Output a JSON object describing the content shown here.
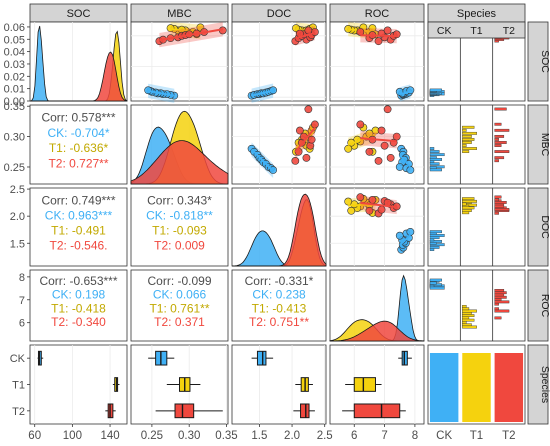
{
  "colors": {
    "CK": "#3fb0f5",
    "T1": "#f5d20e",
    "T2": "#f0483e",
    "strip": "#d4d4d4",
    "grid": "#ebebeb",
    "text_dark": "#4d4d4d"
  },
  "chart_data": {
    "type": "scatter",
    "variables": [
      "SOC",
      "MBC",
      "DOC",
      "ROC"
    ],
    "groups": [
      "CK",
      "T1",
      "T2"
    ],
    "facet_labels": [
      "SOC",
      "MBC",
      "DOC",
      "ROC",
      "Species"
    ],
    "axes": {
      "SOC": {
        "range": [
          55,
          158
        ],
        "ticks": [
          60,
          100,
          140
        ],
        "density_ticks": [
          0.0,
          0.01,
          0.02,
          0.03,
          0.04,
          0.05,
          0.06
        ]
      },
      "MBC": {
        "range": [
          0.222,
          0.352
        ],
        "ticks": [
          0.25,
          0.3,
          0.35
        ]
      },
      "DOC": {
        "range": [
          1.08,
          2.52
        ],
        "ticks": [
          1.5,
          2.0,
          2.5
        ]
      },
      "ROC": {
        "range": [
          5.2,
          8.3
        ],
        "ticks": [
          6,
          7,
          8
        ]
      }
    },
    "species_axis": {
      "labels": [
        "CK",
        "T1",
        "T2"
      ]
    },
    "correlations": {
      "MBC_SOC": {
        "overall": "Corr: 0.578***",
        "CK": "CK: -0.704*",
        "T1": "T1: -0.636*",
        "T2": "T2: 0.727**"
      },
      "DOC_SOC": {
        "overall": "Corr: 0.749***",
        "CK": "CK: 0.963***",
        "T1": "T1: -0.491",
        "T2": "T2: -0.546."
      },
      "DOC_MBC": {
        "overall": "Corr: 0.343*",
        "CK": "CK: -0.818**",
        "T1": "T1: -0.093",
        "T2": "T2: 0.009"
      },
      "ROC_SOC": {
        "overall": "Corr: -0.653***",
        "CK": "CK: 0.198",
        "T1": "T1: -0.418",
        "T2": "T2: -0.340"
      },
      "ROC_MBC": {
        "overall": "Corr: -0.099",
        "CK": "CK: 0.066",
        "T1": "T1: 0.761**",
        "T2": "T2: 0.371"
      },
      "ROC_DOC": {
        "overall": "Corr: -0.331*",
        "CK": "CK: 0.238",
        "T1": "T1: -0.413",
        "T2": "T2: 0.751**"
      }
    },
    "boxplots": {
      "SOC": {
        "CK": [
          63,
          64,
          65,
          67,
          69
        ],
        "T1": [
          143,
          145,
          147,
          148,
          150
        ],
        "T2": [
          135,
          138,
          140,
          143,
          146
        ]
      },
      "MBC": {
        "CK": [
          0.245,
          0.255,
          0.262,
          0.27,
          0.28
        ],
        "T1": [
          0.27,
          0.287,
          0.294,
          0.301,
          0.315
        ],
        "T2": [
          0.255,
          0.281,
          0.291,
          0.306,
          0.345
        ]
      },
      "DOC": {
        "CK": [
          1.38,
          1.47,
          1.55,
          1.6,
          1.71
        ],
        "T1": [
          2.05,
          2.14,
          2.2,
          2.25,
          2.32
        ],
        "T2": [
          2.02,
          2.13,
          2.21,
          2.26,
          2.35
        ]
      },
      "ROC": {
        "CK": [
          7.45,
          7.58,
          7.65,
          7.75,
          7.9
        ],
        "T1": [
          5.7,
          6.0,
          6.3,
          6.7,
          6.9
        ],
        "T2": [
          5.6,
          6.0,
          6.9,
          7.5,
          7.7
        ]
      }
    },
    "points": {
      "SOC": {
        "CK": [
          62,
          63,
          64,
          64,
          65,
          65,
          66,
          67,
          68,
          69
        ],
        "T1": [
          142,
          144,
          145,
          146,
          147,
          147,
          148,
          149,
          150,
          151
        ],
        "T2": [
          133,
          135,
          137,
          138,
          140,
          141,
          142,
          143,
          145,
          147
        ]
      },
      "MBC": {
        "CK": [
          0.28,
          0.275,
          0.27,
          0.265,
          0.262,
          0.258,
          0.255,
          0.25,
          0.248,
          0.245
        ],
        "T1": [
          0.31,
          0.3,
          0.305,
          0.292,
          0.295,
          0.285,
          0.29,
          0.28,
          0.275,
          0.315
        ],
        "T2": [
          0.26,
          0.265,
          0.275,
          0.285,
          0.29,
          0.295,
          0.3,
          0.31,
          0.32,
          0.345
        ]
      },
      "DOC": {
        "CK": [
          1.38,
          1.42,
          1.47,
          1.5,
          1.53,
          1.56,
          1.6,
          1.64,
          1.68,
          1.71
        ],
        "T1": [
          2.3,
          2.25,
          2.2,
          2.18,
          2.15,
          2.22,
          2.1,
          2.27,
          2.06,
          2.32
        ],
        "T2": [
          2.05,
          2.22,
          2.1,
          2.28,
          2.15,
          2.3,
          2.18,
          2.12,
          2.35,
          2.25
        ]
      },
      "ROC": {
        "CK": [
          7.55,
          7.62,
          7.6,
          7.7,
          7.65,
          7.58,
          7.8,
          7.5,
          7.72,
          7.85
        ],
        "T1": [
          6.7,
          6.4,
          6.5,
          6.2,
          6.1,
          6.0,
          5.9,
          5.8,
          6.6,
          6.3
        ],
        "T2": [
          6.8,
          7.2,
          6.5,
          7.0,
          7.3,
          6.6,
          7.4,
          6.9,
          6.2,
          7.1
        ]
      }
    }
  }
}
